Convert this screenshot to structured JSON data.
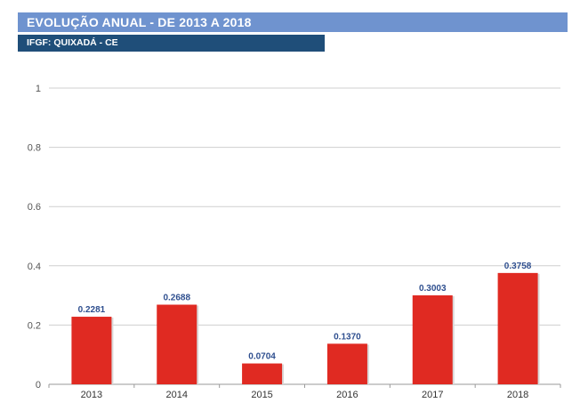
{
  "header": {
    "title": "EVOLUÇÃO ANUAL - DE 2013 A 2018",
    "subtitle": "IFGF: QUIXADÁ - CE"
  },
  "colors": {
    "header_bg": "#6f93cf",
    "subheader_bg": "#1f4e79",
    "bar": "#e02a22",
    "data_label": "#2f4f8f",
    "grid": "#cfcfcf"
  },
  "chart_data": {
    "type": "bar",
    "categories": [
      "2013",
      "2014",
      "2015",
      "2016",
      "2017",
      "2018"
    ],
    "values": [
      0.2281,
      0.2688,
      0.0704,
      0.137,
      0.3003,
      0.3758
    ],
    "data_labels": [
      "0.2281",
      "0.2688",
      "0.0704",
      "0.1370",
      "0.3003",
      "0.3758"
    ],
    "ylim": [
      0,
      1
    ],
    "yticks": [
      0,
      0.2,
      0.4,
      0.6,
      0.8,
      1
    ],
    "ytick_labels": [
      "0",
      "0.2",
      "0.4",
      "0.6",
      "0.8",
      "1"
    ],
    "grid": true,
    "legend": "none"
  }
}
